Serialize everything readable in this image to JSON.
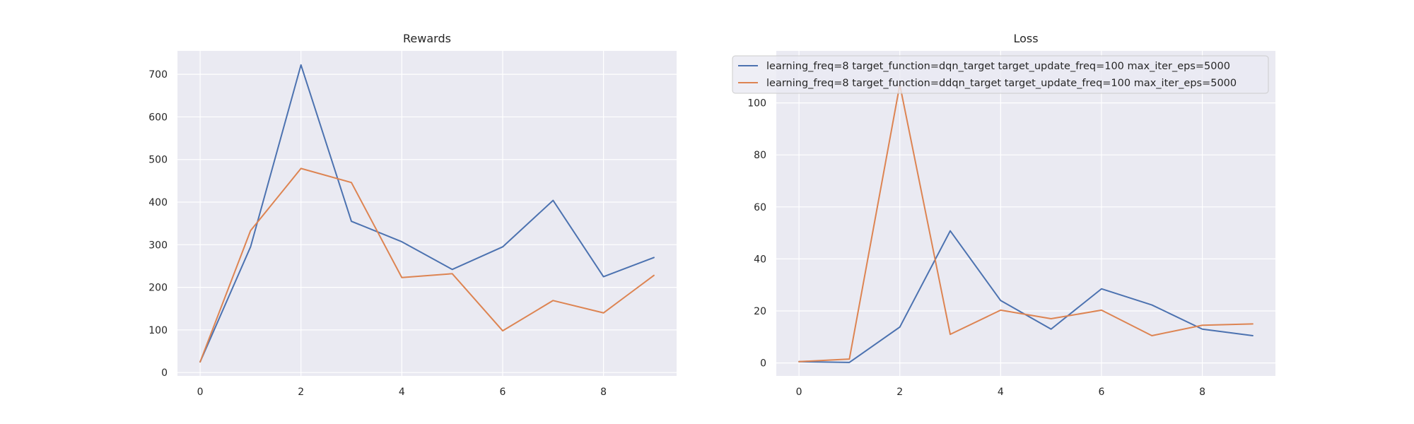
{
  "colors": {
    "axes_bg": "#eaeaf2",
    "grid": "#ffffff",
    "text": "#262626",
    "series_1": "#4c72b0",
    "series_2": "#dd8452"
  },
  "legend": {
    "placement": "top-center of Loss panel",
    "entries": [
      "learning_freq=8 target_function=dqn_target target_update_freq=100 max_iter_eps=5000",
      "learning_freq=8 target_function=ddqn_target target_update_freq=100 max_iter_eps=5000"
    ]
  },
  "chart_data": [
    {
      "type": "line",
      "title": "Rewards",
      "xlabel": "",
      "ylabel": "",
      "grid": true,
      "x": [
        0,
        1,
        2,
        3,
        4,
        5,
        6,
        7,
        8,
        9
      ],
      "xlim": [
        -0.45,
        9.45
      ],
      "ylim": [
        -8,
        755
      ],
      "xticks": [
        0,
        2,
        4,
        6,
        8
      ],
      "yticks": [
        0,
        100,
        200,
        300,
        400,
        500,
        600,
        700
      ],
      "series": [
        {
          "name": "learning_freq=8 target_function=dqn_target target_update_freq=100 max_iter_eps=5000",
          "color": "#4c72b0",
          "values": [
            25,
            295,
            722,
            355,
            307,
            242,
            295,
            404,
            225,
            270
          ]
        },
        {
          "name": "learning_freq=8 target_function=ddqn_target target_update_freq=100 max_iter_eps=5000",
          "color": "#dd8452",
          "values": [
            25,
            333,
            479,
            446,
            223,
            232,
            98,
            169,
            140,
            228
          ]
        }
      ]
    },
    {
      "type": "line",
      "title": "Loss",
      "xlabel": "",
      "ylabel": "",
      "grid": true,
      "x": [
        0,
        1,
        2,
        3,
        4,
        5,
        6,
        7,
        8,
        9
      ],
      "xlim": [
        -0.45,
        9.45
      ],
      "ylim": [
        -5,
        120
      ],
      "xticks": [
        0,
        2,
        4,
        6,
        8
      ],
      "yticks": [
        0,
        20,
        40,
        60,
        80,
        100
      ],
      "series": [
        {
          "name": "learning_freq=8 target_function=dqn_target target_update_freq=100 max_iter_eps=5000",
          "color": "#4c72b0",
          "values": [
            0.5,
            0.2,
            13.8,
            50.8,
            24,
            13,
            28.5,
            22.3,
            13,
            10.5
          ]
        },
        {
          "name": "learning_freq=8 target_function=ddqn_target target_update_freq=100 max_iter_eps=5000",
          "color": "#dd8452",
          "values": [
            0.5,
            1.5,
            107,
            11,
            20.3,
            17,
            20.3,
            10.5,
            14.5,
            15
          ]
        }
      ]
    }
  ]
}
